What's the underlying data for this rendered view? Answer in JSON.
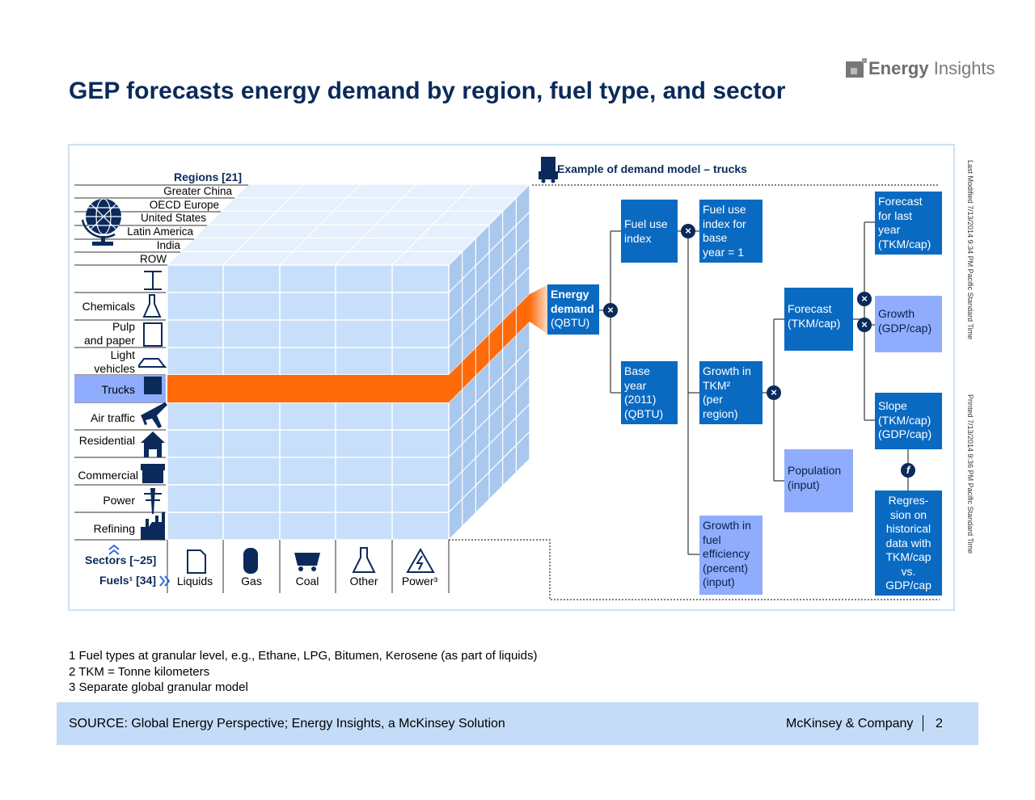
{
  "title": "GEP forecasts energy demand by region, fuel type, and sector",
  "logo": {
    "brand_bold": "Energy",
    "brand_light": "Insights"
  },
  "side_notes": {
    "last_modified": "Last Modified 7/13/2014 9:34 PM Pacific Standard Time",
    "printed": "Printed 7/13/2014 9:36 PM Pacific Standard Time"
  },
  "cube": {
    "regions_title": "Regions [21]",
    "regions": [
      "Greater China",
      "OECD Europe",
      "United States",
      "Latin America",
      "India",
      "ROW"
    ],
    "sectors": [
      "",
      "Chemicals",
      "Pulp\nand paper",
      "Light\nvehicles",
      "Trucks",
      "Air traffic",
      "Residential",
      "Commercial",
      "Power",
      "Refining"
    ],
    "highlighted_sector": "Trucks",
    "sectors_label": "Sectors [~25]",
    "fuels_label": "Fuels¹ [34]",
    "fuels": [
      "Liquids",
      "Gas",
      "Coal",
      "Other",
      "Power³"
    ]
  },
  "model": {
    "title": "Example of demand model – trucks",
    "boxes": {
      "energy_demand_bold": "Energy\ndemand",
      "energy_demand_unit": "(QBTU)",
      "fuel_use_index": "Fuel use\nindex",
      "fuel_use_base": "Fuel use\nindex for\nbase\nyear = 1",
      "base_year": "Base\nyear\n(2011)\n(QBTU)",
      "growth_tkm": "Growth in\nTKM²\n(per\nregion)",
      "growth_fuel": "Growth in\nfuel\nefficiency\n(percent)\n(input)",
      "forecast": "Forecast\n(TKM/cap)",
      "population": "Population\n(input)",
      "forecast_last": "Forecast\nfor last\nyear\n(TKM/cap)",
      "growth_gdp": "Growth\n(GDP/cap)",
      "slope": "Slope\n(TKM/cap)\n(GDP/cap)",
      "regression": "Regres-\nsion on\nhistorical\ndata with\nTKM/cap\nvs.\nGDP/cap"
    },
    "operators": {
      "multiply": "×",
      "function": "f"
    }
  },
  "footnotes": [
    "1 Fuel types at granular level, e.g., Ethane, LPG, Bitumen, Kerosene (as part of liquids)",
    "2 TKM = Tonne kilometers",
    "3 Separate global granular model"
  ],
  "footer": {
    "source": "SOURCE: Global Energy Perspective; Energy Insights, a McKinsey Solution",
    "company": "McKinsey & Company",
    "page": "2"
  },
  "colors": {
    "navy": "#0b2a5b",
    "dark_box": "#0a6ac2",
    "light_box": "#8fadfc",
    "highlight": "#ff6a0a",
    "cube_face": "#c7dffa"
  }
}
